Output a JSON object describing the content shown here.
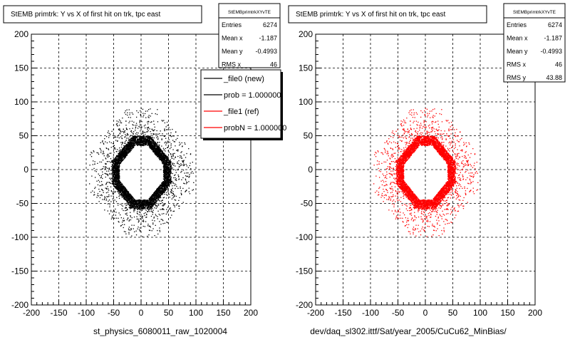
{
  "chart_data": [
    {
      "type": "scatter",
      "title": "StEMB primtrk: Y vs X of first hit on trk, tpc east",
      "xlabel": "st_physics_6080011_raw_1020004",
      "ylabel": "",
      "xlim": [
        -200,
        200
      ],
      "ylim": [
        -200,
        200
      ],
      "x_ticks": [
        "-200",
        "-150",
        "-100",
        "-50",
        "0",
        "50",
        "100",
        "150",
        "200"
      ],
      "y_ticks": [
        "-200",
        "-150",
        "-100",
        "-50",
        "0",
        "50",
        "100",
        "150",
        "200"
      ],
      "grid": true,
      "marker_color": "#000000",
      "distribution": {
        "shape": "octagonal ring",
        "inner_half_width": 40,
        "outer_half_width": 65,
        "halo_extent": 95
      },
      "stats": {
        "name": "StEMBprimtrkXYvTE",
        "rows": [
          {
            "label": "Entries",
            "value": "6274"
          },
          {
            "label": "Mean x",
            "value": "-1.187"
          },
          {
            "label": "Mean y",
            "value": "-0.4993"
          },
          {
            "label": "RMS x",
            "value": "46"
          }
        ]
      },
      "legend": {
        "placement": "top-right",
        "entries": [
          {
            "label": "_file0 (new)",
            "color": "#000000"
          },
          {
            "label": "prob = 1.000000",
            "color": "#000000"
          },
          {
            "label": "_file1 (ref)",
            "color": "#ff0000"
          },
          {
            "label": "probN = 1.000000",
            "color": "#ff0000"
          }
        ]
      }
    },
    {
      "type": "scatter",
      "title": "StEMB primtrk: Y vs X of first hit on trk, tpc east",
      "xlabel": "dev/daq_sl302.ittf/Sat/year_2005/CuCu62_MinBias/",
      "ylabel": "",
      "xlim": [
        -200,
        200
      ],
      "ylim": [
        -200,
        200
      ],
      "x_ticks": [
        "-200",
        "-150",
        "-100",
        "-50",
        "0",
        "50",
        "100",
        "150",
        "200"
      ],
      "y_ticks": [
        "-200",
        "-150",
        "-100",
        "-50",
        "0",
        "50",
        "100",
        "150",
        "200"
      ],
      "grid": true,
      "marker_color": "#ff0000",
      "distribution": {
        "shape": "octagonal ring",
        "inner_half_width": 40,
        "outer_half_width": 65,
        "halo_extent": 95
      },
      "stats": {
        "name": "StEMBprimtrkXYvTE",
        "rows": [
          {
            "label": "Entries",
            "value": "6274"
          },
          {
            "label": "Mean x",
            "value": "-1.187"
          },
          {
            "label": "Mean y",
            "value": "-0.4993"
          },
          {
            "label": "RMS x",
            "value": "46"
          },
          {
            "label": "RMS y",
            "value": "43.88"
          }
        ]
      }
    }
  ]
}
